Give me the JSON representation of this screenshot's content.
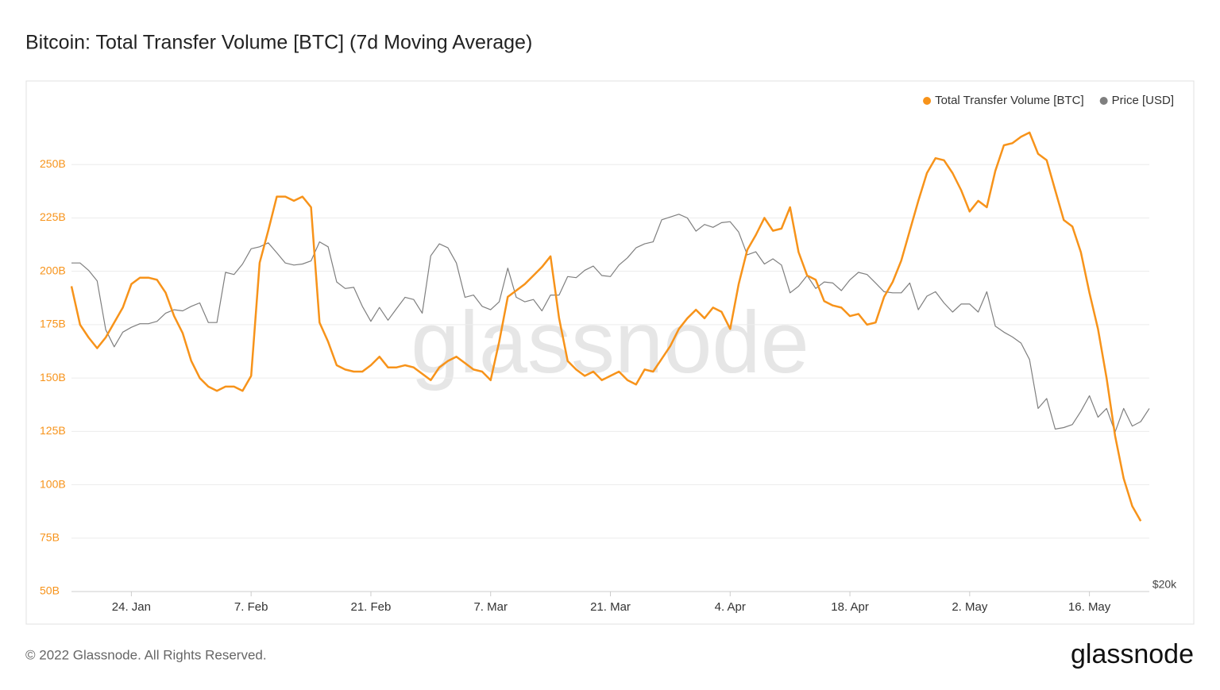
{
  "chart_data": {
    "type": "line",
    "title": "Bitcoin: Total Transfer Volume [BTC] (7d Moving Average)",
    "watermark": "glassnode",
    "categories": [
      null,
      null,
      null,
      null,
      null,
      null,
      null,
      "24. Jan",
      null,
      null,
      null,
      null,
      null,
      null,
      null,
      null,
      null,
      null,
      null,
      null,
      null,
      "7. Feb",
      null,
      null,
      null,
      null,
      null,
      null,
      null,
      null,
      null,
      null,
      null,
      null,
      null,
      "21. Feb",
      null,
      null,
      null,
      null,
      null,
      null,
      null,
      null,
      null,
      null,
      null,
      null,
      null,
      "7. Mar",
      null,
      null,
      null,
      null,
      null,
      null,
      null,
      null,
      null,
      null,
      null,
      null,
      null,
      "21. Mar",
      null,
      null,
      null,
      null,
      null,
      null,
      null,
      null,
      null,
      null,
      null,
      null,
      null,
      "4. Apr",
      null,
      null,
      null,
      null,
      null,
      null,
      null,
      null,
      null,
      null,
      null,
      null,
      null,
      "18. Apr",
      null,
      null,
      null,
      null,
      null,
      null,
      null,
      null,
      null,
      null,
      null,
      null,
      null,
      "2. May",
      null,
      null,
      null,
      null,
      null,
      null,
      null,
      null,
      null,
      null,
      null,
      null,
      null,
      "16. May",
      null,
      null,
      null,
      null,
      null,
      null,
      null
    ],
    "series": [
      {
        "name": "Total Transfer Volume [BTC]",
        "color": "#f7931a",
        "values": [
          193,
          175,
          169,
          164,
          169,
          176,
          183,
          194,
          197,
          197,
          196,
          190,
          179,
          171,
          158,
          150,
          146,
          144,
          146,
          146,
          144,
          151,
          204,
          219,
          235,
          235,
          233,
          235,
          230,
          176,
          167,
          156,
          154,
          153,
          153,
          156,
          160,
          155,
          155,
          156,
          155,
          152,
          149,
          155,
          158,
          160,
          157,
          154,
          153,
          149,
          167,
          188,
          191,
          194,
          198,
          202,
          207,
          178,
          158,
          154,
          151,
          153,
          149,
          151,
          153,
          149,
          147,
          154,
          153,
          159,
          165,
          173,
          178,
          182,
          178,
          183,
          181,
          173,
          194,
          210,
          217,
          225,
          219,
          220,
          230,
          209,
          198,
          196,
          186,
          184,
          183,
          179,
          180,
          175,
          176,
          188,
          195,
          205,
          219,
          233,
          246,
          253,
          252,
          246,
          238,
          228,
          233,
          230,
          247,
          259,
          260,
          263,
          265,
          255,
          252,
          238,
          224,
          221,
          209,
          190,
          173,
          150,
          123,
          103,
          90,
          83,
          null
        ]
      },
      {
        "name": "Price [USD]",
        "color": "#7f7f7f",
        "axis": "y2",
        "values": [
          42400,
          42400,
          41700,
          40700,
          36400,
          35000,
          36200,
          36600,
          36900,
          36900,
          37100,
          37800,
          38100,
          38000,
          38400,
          38700,
          37000,
          37000,
          41500,
          41300,
          42300,
          43800,
          44000,
          44400,
          43400,
          42400,
          42200,
          42300,
          42600,
          44500,
          44000,
          40600,
          40000,
          40100,
          38400,
          37100,
          38300,
          37200,
          38200,
          39200,
          39000,
          37800,
          43100,
          44300,
          43900,
          42400,
          39200,
          39400,
          38400,
          38100,
          38800,
          41900,
          39200,
          38800,
          39000,
          38000,
          39400,
          39400,
          41100,
          41000,
          41700,
          42100,
          41200,
          41100,
          42200,
          42900,
          43900,
          44300,
          44500,
          46800,
          47100,
          47400,
          47000,
          45600,
          46300,
          46000,
          46500,
          46600,
          45500,
          43200,
          43500,
          42300,
          42800,
          42200,
          39600,
          40200,
          41200,
          40000,
          40600,
          40500,
          39800,
          40800,
          41500,
          41300,
          40500,
          39700,
          39600,
          39600,
          40500,
          38100,
          39300,
          39700,
          38700,
          37900,
          38600,
          38600,
          37900,
          39700,
          36700,
          36200,
          35800,
          35300,
          34000,
          30400,
          31100,
          29000,
          29100,
          29300,
          30200,
          31300,
          29800,
          30400,
          28800,
          30400,
          29200,
          29500,
          30400
        ]
      }
    ],
    "ylim": [
      50,
      275
    ],
    "yticks": [
      {
        "value": 50,
        "label": "50B"
      },
      {
        "value": 75,
        "label": "75B"
      },
      {
        "value": 100,
        "label": "100B"
      },
      {
        "value": 125,
        "label": "125B"
      },
      {
        "value": 150,
        "label": "150B"
      },
      {
        "value": 175,
        "label": "175B"
      },
      {
        "value": 200,
        "label": "200B"
      },
      {
        "value": 225,
        "label": "225B"
      },
      {
        "value": 250,
        "label": "250B"
      }
    ],
    "y2lim": [
      20000,
      60000
    ],
    "y2scale": "log",
    "y2ticks": [
      {
        "value": 20000,
        "label": "$20k"
      }
    ],
    "grid": true,
    "legend": "top-right"
  },
  "footer": {
    "copyright": "© 2022 Glassnode. All Rights Reserved.",
    "logo": "glassnode"
  }
}
